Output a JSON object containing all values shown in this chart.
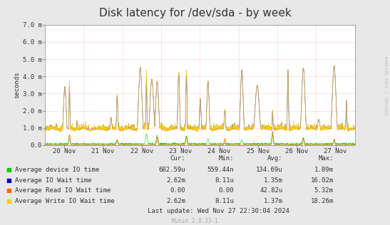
{
  "title": "Disk latency for /dev/sda - by week",
  "ylabel": "seconds",
  "background_color": "#e8e8e8",
  "plot_bg_color": "#ffffff",
  "grid_color": "#ff9999",
  "ylim": [
    0,
    7.0
  ],
  "ytick_labels": [
    "0.0",
    "1.0 m",
    "2.0 m",
    "3.0 m",
    "4.0 m",
    "5.0 m",
    "6.0 m",
    "7.0 m"
  ],
  "xtick_labels": [
    "20 Nov",
    "21 Nov",
    "22 Nov",
    "23 Nov",
    "24 Nov",
    "25 Nov",
    "26 Nov",
    "27 Nov"
  ],
  "series_colors": {
    "device_io": "#00cc00",
    "io_wait": "#0000cc",
    "read_io_wait": "#ff6600",
    "write_io_wait": "#ffcc00"
  },
  "legend_entries": [
    {
      "label": "Average device IO time",
      "color": "#00cc00"
    },
    {
      "label": "Average IO Wait time",
      "color": "#0000cc"
    },
    {
      "label": "Average Read IO Wait time",
      "color": "#ff6600"
    },
    {
      "label": "Average Write IO Wait time",
      "color": "#ffcc00"
    }
  ],
  "stats": {
    "headers": [
      "Cur:",
      "Min:",
      "Avg:",
      "Max:"
    ],
    "rows": [
      [
        "682.59u",
        "559.44n",
        "134.69u",
        "1.89m"
      ],
      [
        "2.62m",
        "8.11u",
        "1.35m",
        "16.02m"
      ],
      [
        "0.00",
        "0.00",
        "42.82u",
        "5.32m"
      ],
      [
        "2.62m",
        "8.11u",
        "1.37m",
        "18.26m"
      ]
    ]
  },
  "last_update": "Last update: Wed Nov 27 22:30:04 2024",
  "munin_version": "Munin 2.0.33-1",
  "watermark": "RRDTOOL / TOBI OETIKER",
  "title_fontsize": 11,
  "axis_fontsize": 6.5,
  "legend_fontsize": 6.5,
  "stats_fontsize": 6.5
}
